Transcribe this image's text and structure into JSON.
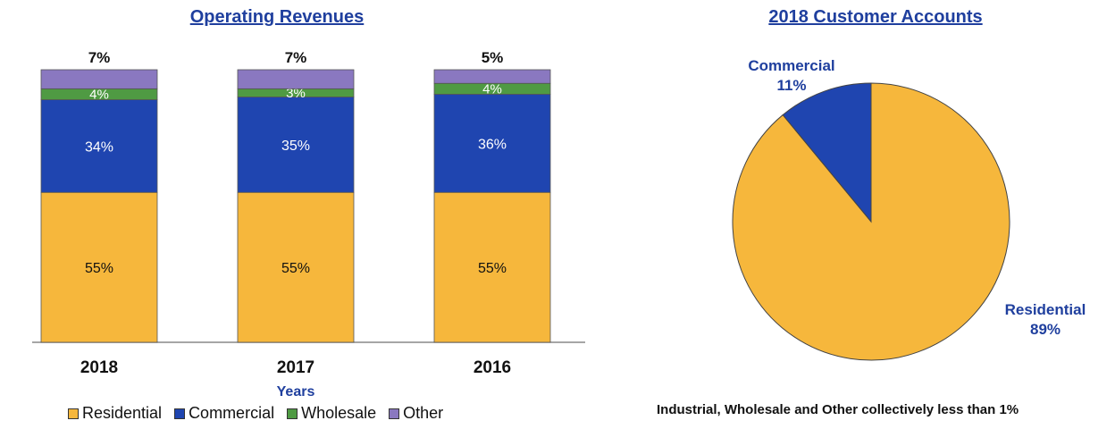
{
  "chart_data": [
    {
      "type": "bar",
      "stacked": true,
      "title": "Operating Revenues",
      "xlabel": "Years",
      "ylabel": "",
      "categories": [
        "2018",
        "2017",
        "2016"
      ],
      "series": [
        {
          "name": "Residential",
          "color": "#f6b73c",
          "values": [
            55,
            55,
            55
          ],
          "labels": [
            "55%",
            "55%",
            "55%"
          ]
        },
        {
          "name": "Commercial",
          "color": "#1f45b0",
          "values": [
            34,
            35,
            36
          ],
          "labels": [
            "34%",
            "35%",
            "36%"
          ]
        },
        {
          "name": "Wholesale",
          "color": "#4f9a43",
          "values": [
            4,
            3,
            4
          ],
          "labels": [
            "4%",
            "3%",
            "4%"
          ]
        },
        {
          "name": "Other",
          "color": "#8a78c0",
          "values": [
            7,
            7,
            5
          ],
          "labels": [
            "7%",
            "7%",
            "5%"
          ]
        }
      ],
      "ylim": [
        0,
        100
      ],
      "grid": false,
      "legend": "bottom"
    },
    {
      "type": "pie",
      "title": "2018 Customer Accounts",
      "slices": [
        {
          "name": "Residential",
          "value": 89,
          "label": "89%",
          "color": "#f6b73c"
        },
        {
          "name": "Commercial",
          "value": 11,
          "label": "11%",
          "color": "#1f45b0"
        }
      ],
      "note": "Industrial, Wholesale and Other collectively less than 1%"
    }
  ]
}
